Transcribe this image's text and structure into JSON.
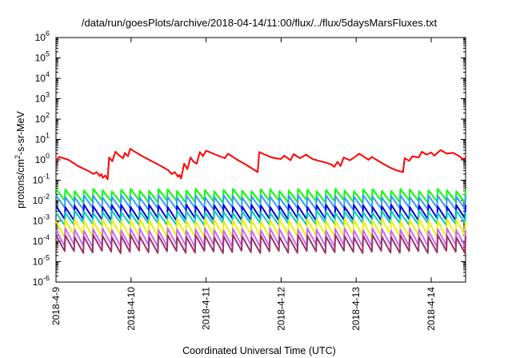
{
  "chart_data": {
    "type": "line",
    "title": "/data/run/goesPlots/archive/2018-04-14/11:00/flux/../flux/5daysMarsFluxes.txt",
    "xlabel": "Coordinated Universal Time (UTC)",
    "ylabel": {
      "prefix": "protons/cm",
      "sup": "2",
      "suffix": "-s-sr-MeV"
    },
    "yscale": "log",
    "ylim": [
      1e-06,
      1000000.0
    ],
    "y_ticks": [
      {
        "base": "10",
        "exp": "-6",
        "value": 1e-06
      },
      {
        "base": "10",
        "exp": "-5",
        "value": 1e-05
      },
      {
        "base": "10",
        "exp": "-4",
        "value": 0.0001
      },
      {
        "base": "10",
        "exp": "-3",
        "value": 0.001
      },
      {
        "base": "10",
        "exp": "-2",
        "value": 0.01
      },
      {
        "base": "10",
        "exp": "-1",
        "value": 0.1
      },
      {
        "base": "10",
        "exp": "0",
        "value": 1
      },
      {
        "base": "10",
        "exp": "1",
        "value": 10
      },
      {
        "base": "10",
        "exp": "2",
        "value": 100
      },
      {
        "base": "10",
        "exp": "3",
        "value": 1000
      },
      {
        "base": "10",
        "exp": "4",
        "value": 10000
      },
      {
        "base": "10",
        "exp": "5",
        "value": 100000
      },
      {
        "base": "10",
        "exp": "6",
        "value": 1000000
      }
    ],
    "x_ticks": [
      "2018-4-9",
      "2018-4-10",
      "2018-4-11",
      "2018-4-12",
      "2018-4-13",
      "2018-4-14"
    ],
    "xlim": [
      "2018-04-09T00:00",
      "2018-04-14T11:00"
    ],
    "grid": false,
    "series": [
      {
        "color": "#ff0000",
        "points": [
          [
            "2018-04-09T00:00",
            0.9
          ],
          [
            "2018-04-09T01:00",
            1.4
          ],
          [
            "2018-04-09T04:00",
            1.0
          ],
          [
            "2018-04-09T07:00",
            0.5
          ],
          [
            "2018-04-09T10:00",
            0.3
          ],
          [
            "2018-04-09T12:00",
            0.2
          ],
          [
            "2018-04-09T13:00",
            0.25
          ],
          [
            "2018-04-09T14:00",
            0.16
          ],
          [
            "2018-04-09T14:30",
            0.2
          ],
          [
            "2018-04-09T15:00",
            0.13
          ],
          [
            "2018-04-09T15:45",
            0.17
          ],
          [
            "2018-04-09T16:30",
            0.11
          ],
          [
            "2018-04-09T17:00",
            1.3
          ],
          [
            "2018-04-09T18:00",
            0.85
          ],
          [
            "2018-04-09T19:00",
            2.5
          ],
          [
            "2018-04-09T20:30",
            1.5
          ],
          [
            "2018-04-09T21:30",
            1.2
          ],
          [
            "2018-04-09T22:00",
            2.2
          ],
          [
            "2018-04-09T23:00",
            1.5
          ],
          [
            "2018-04-09T23:45",
            3.5
          ],
          [
            "2018-04-10T01:00",
            2.6
          ],
          [
            "2018-04-10T04:00",
            1.4
          ],
          [
            "2018-04-10T07:00",
            0.8
          ],
          [
            "2018-04-10T10:00",
            0.45
          ],
          [
            "2018-04-10T12:00",
            0.3
          ],
          [
            "2018-04-10T13:00",
            0.2
          ],
          [
            "2018-04-10T14:00",
            0.25
          ],
          [
            "2018-04-10T15:00",
            0.15
          ],
          [
            "2018-04-10T15:30",
            0.18
          ],
          [
            "2018-04-10T16:00",
            0.12
          ],
          [
            "2018-04-10T17:00",
            0.65
          ],
          [
            "2018-04-10T18:00",
            0.35
          ],
          [
            "2018-04-10T19:00",
            1.3
          ],
          [
            "2018-04-10T20:00",
            0.8
          ],
          [
            "2018-04-10T21:00",
            0.65
          ],
          [
            "2018-04-10T22:00",
            2.4
          ],
          [
            "2018-04-10T23:00",
            1.5
          ],
          [
            "2018-04-11T00:00",
            2.8
          ],
          [
            "2018-04-11T03:00",
            1.8
          ],
          [
            "2018-04-11T06:00",
            1.2
          ],
          [
            "2018-04-11T07:00",
            2.0
          ],
          [
            "2018-04-11T10:00",
            1.0
          ],
          [
            "2018-04-11T13:00",
            0.55
          ],
          [
            "2018-04-11T15:00",
            0.35
          ],
          [
            "2018-04-11T16:30",
            0.25
          ],
          [
            "2018-04-11T17:00",
            2.4
          ],
          [
            "2018-04-11T20:00",
            1.5
          ],
          [
            "2018-04-11T22:00",
            1.2
          ],
          [
            "2018-04-12T00:00",
            1.1
          ],
          [
            "2018-04-12T01:00",
            1.6
          ],
          [
            "2018-04-12T03:00",
            0.95
          ],
          [
            "2018-04-12T04:00",
            1.9
          ],
          [
            "2018-04-12T06:00",
            1.2
          ],
          [
            "2018-04-12T08:00",
            1.8
          ],
          [
            "2018-04-12T10:00",
            1.1
          ],
          [
            "2018-04-12T12:00",
            0.9
          ],
          [
            "2018-04-12T14:00",
            0.75
          ],
          [
            "2018-04-12T16:00",
            0.6
          ],
          [
            "2018-04-12T17:00",
            0.45
          ],
          [
            "2018-04-12T18:00",
            0.8
          ],
          [
            "2018-04-12T19:00",
            0.5
          ],
          [
            "2018-04-12T20:00",
            1.3
          ],
          [
            "2018-04-12T22:00",
            0.95
          ],
          [
            "2018-04-12T23:00",
            1.2
          ],
          [
            "2018-04-13T01:00",
            2.0
          ],
          [
            "2018-04-13T04:00",
            1.0
          ],
          [
            "2018-04-13T05:00",
            1.4
          ],
          [
            "2018-04-13T07:00",
            0.9
          ],
          [
            "2018-04-13T09:00",
            0.6
          ],
          [
            "2018-04-13T11:00",
            0.4
          ],
          [
            "2018-04-13T13:00",
            0.3
          ],
          [
            "2018-04-13T15:00",
            0.25
          ],
          [
            "2018-04-13T15:30",
            1.2
          ],
          [
            "2018-04-13T17:00",
            0.9
          ],
          [
            "2018-04-13T18:00",
            1.5
          ],
          [
            "2018-04-13T20:00",
            1.3
          ],
          [
            "2018-04-13T21:00",
            2.5
          ],
          [
            "2018-04-13T22:30",
            1.8
          ],
          [
            "2018-04-14T00:00",
            2.3
          ],
          [
            "2018-04-14T01:00",
            1.6
          ],
          [
            "2018-04-14T02:00",
            2.2
          ],
          [
            "2018-04-14T03:00",
            3.0
          ],
          [
            "2018-04-14T05:00",
            2.0
          ],
          [
            "2018-04-14T07:00",
            2.2
          ],
          [
            "2018-04-14T09:00",
            1.5
          ],
          [
            "2018-04-14T10:00",
            1.1
          ],
          [
            "2018-04-14T11:00",
            1.2
          ]
        ]
      },
      {
        "color": "#00ff00",
        "sawtooth": {
          "peak": 0.033,
          "trough": 0.009,
          "cycles": 44
        }
      },
      {
        "color": "#3399ff",
        "sawtooth": {
          "peak": 0.016,
          "trough": 0.004,
          "cycles": 44
        }
      },
      {
        "color": "#0000dd",
        "sawtooth": {
          "peak": 0.0055,
          "trough": 0.0012,
          "cycles": 44
        }
      },
      {
        "color": "#00ccbb",
        "sawtooth": {
          "peak": 0.0028,
          "trough": 0.0007,
          "cycles": 44
        }
      },
      {
        "color": "#eeee00",
        "sawtooth": {
          "peak": 0.0011,
          "trough": 0.00018,
          "cycles": 44
        }
      },
      {
        "color": "#cc66ff",
        "sawtooth": {
          "peak": 0.00038,
          "trough": 6e-05,
          "cycles": 44
        }
      },
      {
        "color": "#993366",
        "sawtooth": {
          "peak": 0.00018,
          "trough": 3e-05,
          "cycles": 44
        }
      }
    ]
  }
}
